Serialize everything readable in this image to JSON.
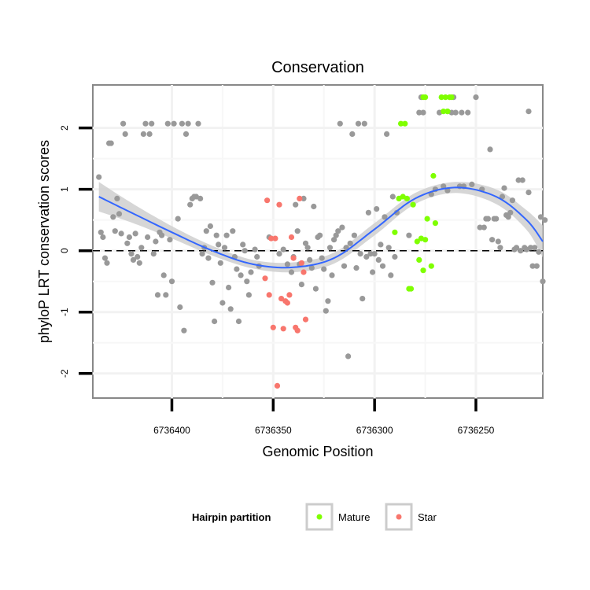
{
  "chart_data": {
    "type": "scatter",
    "title": "Conservation",
    "xlabel": "Genomic Position",
    "ylabel": "phyloP LRT conservation scores",
    "x_reversed": true,
    "xlim": [
      6736439,
      6736217
    ],
    "ylim": [
      -2.4,
      2.7
    ],
    "x_ticks": [
      6736400,
      6736350,
      6736300,
      6736250
    ],
    "x_tick_labels": [
      "6736400",
      "6736350",
      "6736300",
      "6736250"
    ],
    "y_ticks": [
      -2,
      -1,
      0,
      1,
      2
    ],
    "y_tick_labels": [
      "-2",
      "-1",
      "0",
      "1",
      "2"
    ],
    "reference_line": {
      "y": 0,
      "style": "dashed"
    },
    "legend": {
      "title": "Hairpin partition",
      "position": "bottom",
      "entries": [
        {
          "label": "Mature",
          "color": "#7fff00"
        },
        {
          "label": "Star",
          "color": "#f8766d"
        }
      ]
    },
    "colors": {
      "other": "#999999",
      "Mature": "#7fff00",
      "Star": "#f8766d",
      "smooth": "#3366ff",
      "ribbon": "#cccccc"
    },
    "series": [
      {
        "name": "Other",
        "points": [
          [
            6736436,
            1.2
          ],
          [
            6736435,
            0.3
          ],
          [
            6736434,
            0.22
          ],
          [
            6736433,
            -0.12
          ],
          [
            6736432,
            -0.2
          ],
          [
            6736431,
            1.75
          ],
          [
            6736430,
            1.75
          ],
          [
            6736429,
            0.55
          ],
          [
            6736428,
            0.32
          ],
          [
            6736427,
            0.85
          ],
          [
            6736426,
            0.6
          ],
          [
            6736425,
            0.28
          ],
          [
            6736424,
            2.07
          ],
          [
            6736423,
            1.9
          ],
          [
            6736422,
            0.12
          ],
          [
            6736421,
            0.22
          ],
          [
            6736420,
            -0.05
          ],
          [
            6736419,
            -0.15
          ],
          [
            6736418,
            0.28
          ],
          [
            6736417,
            -0.1
          ],
          [
            6736416,
            -0.2
          ],
          [
            6736415,
            0.05
          ],
          [
            6736414,
            1.9
          ],
          [
            6736413,
            2.07
          ],
          [
            6736412,
            0.22
          ],
          [
            6736411,
            1.9
          ],
          [
            6736410,
            2.07
          ],
          [
            6736409,
            -0.05
          ],
          [
            6736408,
            0.15
          ],
          [
            6736407,
            -0.72
          ],
          [
            6736406,
            0.3
          ],
          [
            6736405,
            0.25
          ],
          [
            6736404,
            -0.4
          ],
          [
            6736403,
            -0.72
          ],
          [
            6736402,
            2.07
          ],
          [
            6736401,
            0.18
          ],
          [
            6736400,
            -0.5
          ],
          [
            6736399,
            2.07
          ],
          [
            6736397,
            0.52
          ],
          [
            6736396,
            -0.92
          ],
          [
            6736395,
            2.07
          ],
          [
            6736394,
            -1.3
          ],
          [
            6736393,
            1.9
          ],
          [
            6736392,
            2.07
          ],
          [
            6736391,
            0.75
          ],
          [
            6736390,
            0.85
          ],
          [
            6736389,
            0.88
          ],
          [
            6736388,
            0.88
          ],
          [
            6736387,
            2.07
          ],
          [
            6736386,
            0.85
          ],
          [
            6736385,
            -0.05
          ],
          [
            6736384,
            0.05
          ],
          [
            6736383,
            0.32
          ],
          [
            6736382,
            -0.12
          ],
          [
            6736381,
            0.4
          ],
          [
            6736380,
            -0.52
          ],
          [
            6736379,
            -1.15
          ],
          [
            6736378,
            0.25
          ],
          [
            6736377,
            0.1
          ],
          [
            6736376,
            -0.2
          ],
          [
            6736375,
            -0.85
          ],
          [
            6736374,
            0.05
          ],
          [
            6736373,
            0.25
          ],
          [
            6736372,
            -0.6
          ],
          [
            6736371,
            -0.95
          ],
          [
            6736370,
            0.32
          ],
          [
            6736369,
            -0.1
          ],
          [
            6736368,
            -0.3
          ],
          [
            6736367,
            -1.15
          ],
          [
            6736366,
            -0.4
          ],
          [
            6736365,
            0.1
          ],
          [
            6736364,
            0.0
          ],
          [
            6736363,
            -0.5
          ],
          [
            6736362,
            -0.72
          ],
          [
            6736361,
            -0.35
          ],
          [
            6736359,
            0.02
          ],
          [
            6736358,
            -0.1
          ],
          [
            6736357,
            -0.25
          ],
          [
            6736352,
            0.22
          ],
          [
            6736347,
            -0.05
          ],
          [
            6736345,
            0.02
          ],
          [
            6736343,
            -0.22
          ],
          [
            6736341,
            -0.35
          ],
          [
            6736340,
            -0.1
          ],
          [
            6736339,
            0.75
          ],
          [
            6736338,
            0.32
          ],
          [
            6736337,
            -0.22
          ],
          [
            6736336,
            -0.55
          ],
          [
            6736335,
            0.85
          ],
          [
            6736334,
            0.12
          ],
          [
            6736333,
            0.05
          ],
          [
            6736332,
            -0.15
          ],
          [
            6736331,
            -0.28
          ],
          [
            6736330,
            0.72
          ],
          [
            6736329,
            -0.62
          ],
          [
            6736328,
            0.22
          ],
          [
            6736327,
            0.25
          ],
          [
            6736326,
            -0.12
          ],
          [
            6736325,
            -0.3
          ],
          [
            6736324,
            -0.98
          ],
          [
            6736323,
            -0.82
          ],
          [
            6736322,
            0.05
          ],
          [
            6736321,
            -0.4
          ],
          [
            6736320,
            0.18
          ],
          [
            6736319,
            0.25
          ],
          [
            6736318,
            0.32
          ],
          [
            6736317,
            2.07
          ],
          [
            6736316,
            0.38
          ],
          [
            6736315,
            -0.25
          ],
          [
            6736314,
            0.05
          ],
          [
            6736313,
            -1.72
          ],
          [
            6736312,
            0.12
          ],
          [
            6736311,
            1.9
          ],
          [
            6736310,
            0.25
          ],
          [
            6736309,
            -0.28
          ],
          [
            6736308,
            2.07
          ],
          [
            6736307,
            -0.05
          ],
          [
            6736306,
            -0.78
          ],
          [
            6736305,
            2.07
          ],
          [
            6736304,
            -0.1
          ],
          [
            6736303,
            0.62
          ],
          [
            6736302,
            -0.05
          ],
          [
            6736301,
            -0.35
          ],
          [
            6736300,
            -0.05
          ],
          [
            6736299,
            0.68
          ],
          [
            6736298,
            -0.15
          ],
          [
            6736297,
            0.1
          ],
          [
            6736296,
            -0.25
          ],
          [
            6736295,
            0.55
          ],
          [
            6736294,
            1.9
          ],
          [
            6736293,
            0.05
          ],
          [
            6736292,
            -0.4
          ],
          [
            6736291,
            0.88
          ],
          [
            6736290,
            -0.1
          ],
          [
            6736289,
            0.62
          ],
          [
            6736283,
            0.25
          ],
          [
            6736278,
            2.25
          ],
          [
            6736277,
            2.5
          ],
          [
            6736276,
            2.25
          ],
          [
            6736272,
            0.92
          ],
          [
            6736270,
            1.0
          ],
          [
            6736268,
            2.25
          ],
          [
            6736266,
            1.05
          ],
          [
            6736264,
            0.98
          ],
          [
            6736262,
            2.25
          ],
          [
            6736261,
            2.5
          ],
          [
            6736260,
            2.25
          ],
          [
            6736258,
            1.05
          ],
          [
            6736257,
            2.25
          ],
          [
            6736256,
            1.05
          ],
          [
            6736254,
            2.25
          ],
          [
            6736252,
            1.08
          ],
          [
            6736250,
            2.5
          ],
          [
            6736248,
            0.38
          ],
          [
            6736247,
            1.0
          ],
          [
            6736246,
            0.38
          ],
          [
            6736245,
            0.52
          ],
          [
            6736244,
            0.52
          ],
          [
            6736243,
            1.65
          ],
          [
            6736242,
            0.18
          ],
          [
            6736241,
            0.52
          ],
          [
            6736240,
            0.52
          ],
          [
            6736239,
            0.15
          ],
          [
            6736238,
            0.05
          ],
          [
            6736237,
            0.88
          ],
          [
            6736236,
            1.02
          ],
          [
            6736235,
            0.58
          ],
          [
            6736234,
            0.55
          ],
          [
            6736233,
            0.62
          ],
          [
            6736232,
            0.82
          ],
          [
            6736231,
            0.02
          ],
          [
            6736230,
            0.05
          ],
          [
            6736229,
            1.15
          ],
          [
            6736228,
            0.0
          ],
          [
            6736227,
            1.15
          ],
          [
            6736226,
            0.05
          ],
          [
            6736225,
            0.02
          ],
          [
            6736224,
            0.95
          ],
          [
            6736223,
            0.05
          ],
          [
            6736222,
            -0.25
          ],
          [
            6736221,
            0.05
          ],
          [
            6736224,
            2.27
          ],
          [
            6736219,
            -0.02
          ],
          [
            6736218,
            0.55
          ],
          [
            6736220,
            -0.25
          ],
          [
            6736217,
            -0.5
          ],
          [
            6736216,
            0.5
          ]
        ]
      },
      {
        "name": "Mature",
        "points": [
          [
            6736288,
            0.85
          ],
          [
            6736287,
            2.07
          ],
          [
            6736286,
            0.88
          ],
          [
            6736285,
            2.07
          ],
          [
            6736284,
            0.85
          ],
          [
            6736283,
            -0.62
          ],
          [
            6736282,
            -0.62
          ],
          [
            6736281,
            0.75
          ],
          [
            6736279,
            0.15
          ],
          [
            6736278,
            -0.15
          ],
          [
            6736277,
            0.2
          ],
          [
            6736276,
            -0.32
          ],
          [
            6736275,
            0.18
          ],
          [
            6736274,
            0.52
          ],
          [
            6736272,
            -0.25
          ],
          [
            6736271,
            1.22
          ],
          [
            6736270,
            0.45
          ],
          [
            6736276,
            2.5
          ],
          [
            6736275,
            2.5
          ],
          [
            6736267,
            2.5
          ],
          [
            6736266,
            2.27
          ],
          [
            6736265,
            2.5
          ],
          [
            6736264,
            2.27
          ],
          [
            6736263,
            2.5
          ],
          [
            6736262,
            2.5
          ],
          [
            6736290,
            0.3
          ],
          [
            6736264,
            2.27
          ]
        ]
      },
      {
        "name": "Star",
        "points": [
          [
            6736354,
            -0.45
          ],
          [
            6736353,
            0.82
          ],
          [
            6736352,
            -0.72
          ],
          [
            6736351,
            0.2
          ],
          [
            6736350,
            -1.25
          ],
          [
            6736349,
            0.2
          ],
          [
            6736348,
            -2.2
          ],
          [
            6736347,
            0.75
          ],
          [
            6736346,
            -0.78
          ],
          [
            6736345,
            -1.27
          ],
          [
            6736344,
            -0.82
          ],
          [
            6736343,
            -0.85
          ],
          [
            6736342,
            -0.72
          ],
          [
            6736341,
            0.22
          ],
          [
            6736340,
            -0.12
          ],
          [
            6736339,
            -1.25
          ],
          [
            6736338,
            -1.3
          ],
          [
            6736337,
            0.85
          ],
          [
            6736336,
            -0.2
          ],
          [
            6736335,
            -0.35
          ],
          [
            6736334,
            -1.12
          ]
        ]
      }
    ],
    "smooth": {
      "x": [
        6736436,
        6736420,
        6736400,
        6736380,
        6736360,
        6736340,
        6736320,
        6736300,
        6736280,
        6736260,
        6736240,
        6736225,
        6736217
      ],
      "y": [
        0.88,
        0.62,
        0.3,
        0.0,
        -0.22,
        -0.27,
        -0.12,
        0.35,
        0.85,
        1.03,
        0.88,
        0.5,
        0.15
      ],
      "se": [
        0.24,
        0.16,
        0.1,
        0.08,
        0.07,
        0.08,
        0.09,
        0.1,
        0.09,
        0.09,
        0.12,
        0.16,
        0.26
      ]
    }
  }
}
